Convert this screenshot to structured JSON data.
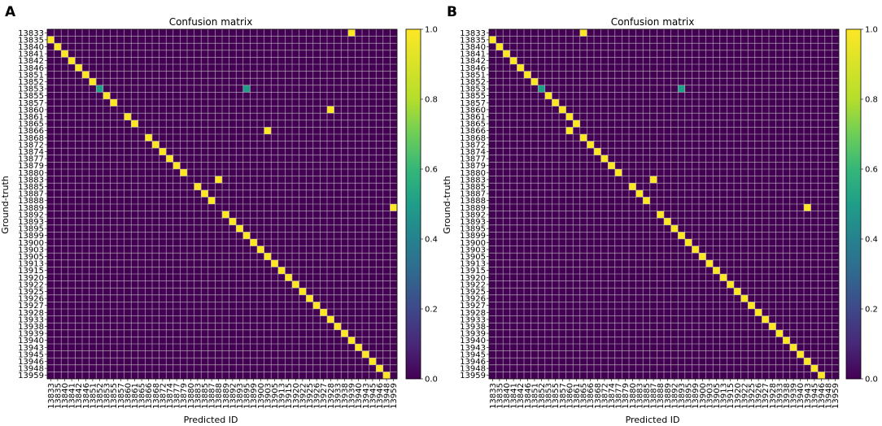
{
  "figure": {
    "panel_labels": [
      "A",
      "B"
    ]
  },
  "chart_data": [
    {
      "type": "heatmap",
      "panel": "A",
      "title": "Confusion matrix",
      "xlabel": "Predicted ID",
      "ylabel": "Ground-truth",
      "colorbar": {
        "min": 0.0,
        "max": 1.0,
        "ticks": [
          "0.0",
          "0.2",
          "0.4",
          "0.6",
          "0.8",
          "1.0"
        ],
        "colormap": "viridis"
      },
      "row_labels": [
        "13833",
        "13835",
        "13840",
        "13841",
        "13842",
        "13846",
        "13851",
        "13852",
        "13853",
        "13855",
        "13857",
        "13860",
        "13861",
        "13865",
        "13866",
        "13868",
        "13872",
        "13874",
        "13877",
        "13879",
        "13880",
        "13883",
        "13885",
        "13887",
        "13888",
        "13889",
        "13892",
        "13893",
        "13895",
        "13899",
        "13900",
        "13903",
        "13905",
        "13913",
        "13915",
        "13920",
        "13922",
        "13925",
        "13926",
        "13927",
        "13928",
        "13933",
        "13938",
        "13939",
        "13940",
        "13943",
        "13945",
        "13946",
        "13948",
        "13959"
      ],
      "col_labels": [
        "13833",
        "13835",
        "13840",
        "13841",
        "13842",
        "13846",
        "13851",
        "13852",
        "13853",
        "13855",
        "13857",
        "13860",
        "13861",
        "13865",
        "13866",
        "13868",
        "13872",
        "13874",
        "13877",
        "13879",
        "13880",
        "13883",
        "13885",
        "13887",
        "13888",
        "13889",
        "13892",
        "13893",
        "13895",
        "13899",
        "13900",
        "13903",
        "13905",
        "13913",
        "13915",
        "13920",
        "13922",
        "13925",
        "13926",
        "13927",
        "13928",
        "13933",
        "13938",
        "13939",
        "13940",
        "13943",
        "13945",
        "13946",
        "13948",
        "13959"
      ],
      "nonzero_cells": [
        {
          "row": 0,
          "col": 43,
          "value": 1.0
        },
        {
          "row": 1,
          "col": 0,
          "value": 1.0
        },
        {
          "row": 2,
          "col": 1,
          "value": 1.0
        },
        {
          "row": 3,
          "col": 2,
          "value": 1.0
        },
        {
          "row": 4,
          "col": 3,
          "value": 1.0
        },
        {
          "row": 5,
          "col": 4,
          "value": 1.0
        },
        {
          "row": 6,
          "col": 5,
          "value": 1.0
        },
        {
          "row": 7,
          "col": 6,
          "value": 1.0
        },
        {
          "row": 8,
          "col": 7,
          "value": 0.5
        },
        {
          "row": 8,
          "col": 28,
          "value": 0.5
        },
        {
          "row": 9,
          "col": 8,
          "value": 1.0
        },
        {
          "row": 10,
          "col": 9,
          "value": 1.0
        },
        {
          "row": 11,
          "col": 40,
          "value": 1.0
        },
        {
          "row": 12,
          "col": 11,
          "value": 1.0
        },
        {
          "row": 13,
          "col": 12,
          "value": 1.0
        },
        {
          "row": 14,
          "col": 31,
          "value": 1.0
        },
        {
          "row": 15,
          "col": 14,
          "value": 1.0
        },
        {
          "row": 16,
          "col": 15,
          "value": 1.0
        },
        {
          "row": 17,
          "col": 16,
          "value": 1.0
        },
        {
          "row": 18,
          "col": 17,
          "value": 1.0
        },
        {
          "row": 19,
          "col": 18,
          "value": 1.0
        },
        {
          "row": 20,
          "col": 19,
          "value": 1.0
        },
        {
          "row": 21,
          "col": 24,
          "value": 1.0
        },
        {
          "row": 22,
          "col": 21,
          "value": 1.0
        },
        {
          "row": 23,
          "col": 22,
          "value": 1.0
        },
        {
          "row": 24,
          "col": 23,
          "value": 1.0
        },
        {
          "row": 25,
          "col": 49,
          "value": 1.0
        },
        {
          "row": 26,
          "col": 25,
          "value": 1.0
        },
        {
          "row": 27,
          "col": 26,
          "value": 1.0
        },
        {
          "row": 28,
          "col": 27,
          "value": 1.0
        },
        {
          "row": 29,
          "col": 28,
          "value": 1.0
        },
        {
          "row": 30,
          "col": 29,
          "value": 1.0
        },
        {
          "row": 31,
          "col": 30,
          "value": 1.0
        },
        {
          "row": 32,
          "col": 31,
          "value": 1.0
        },
        {
          "row": 33,
          "col": 32,
          "value": 1.0
        },
        {
          "row": 34,
          "col": 33,
          "value": 1.0
        },
        {
          "row": 35,
          "col": 34,
          "value": 1.0
        },
        {
          "row": 36,
          "col": 35,
          "value": 1.0
        },
        {
          "row": 37,
          "col": 36,
          "value": 1.0
        },
        {
          "row": 38,
          "col": 37,
          "value": 1.0
        },
        {
          "row": 39,
          "col": 38,
          "value": 1.0
        },
        {
          "row": 40,
          "col": 39,
          "value": 1.0
        },
        {
          "row": 41,
          "col": 40,
          "value": 1.0
        },
        {
          "row": 42,
          "col": 41,
          "value": 1.0
        },
        {
          "row": 43,
          "col": 42,
          "value": 1.0
        },
        {
          "row": 44,
          "col": 43,
          "value": 1.0
        },
        {
          "row": 45,
          "col": 44,
          "value": 1.0
        },
        {
          "row": 46,
          "col": 45,
          "value": 1.0
        },
        {
          "row": 47,
          "col": 46,
          "value": 1.0
        },
        {
          "row": 48,
          "col": 47,
          "value": 1.0
        },
        {
          "row": 49,
          "col": 48,
          "value": 1.0
        }
      ]
    },
    {
      "type": "heatmap",
      "panel": "B",
      "title": "Confusion matrix",
      "xlabel": "Predicted ID",
      "ylabel": "Ground-truth",
      "colorbar": {
        "min": 0.0,
        "max": 1.0,
        "ticks": [
          "0.0",
          "0.2",
          "0.4",
          "0.6",
          "0.8",
          "1.0"
        ],
        "colormap": "viridis"
      },
      "row_labels": [
        "13833",
        "13835",
        "13840",
        "13841",
        "13842",
        "13846",
        "13851",
        "13852",
        "13853",
        "13855",
        "13857",
        "13860",
        "13861",
        "13865",
        "13866",
        "13868",
        "13872",
        "13874",
        "13877",
        "13879",
        "13880",
        "13883",
        "13885",
        "13887",
        "13888",
        "13889",
        "13892",
        "13893",
        "13895",
        "13899",
        "13900",
        "13903",
        "13905",
        "13913",
        "13915",
        "13920",
        "13922",
        "13925",
        "13926",
        "13927",
        "13928",
        "13933",
        "13938",
        "13939",
        "13940",
        "13943",
        "13945",
        "13946",
        "13948",
        "13959"
      ],
      "col_labels": [
        "13833",
        "13835",
        "13840",
        "13841",
        "13842",
        "13846",
        "13851",
        "13852",
        "13853",
        "13855",
        "13857",
        "13860",
        "13861",
        "13865",
        "13866",
        "13868",
        "13872",
        "13874",
        "13877",
        "13879",
        "13880",
        "13883",
        "13885",
        "13887",
        "13888",
        "13889",
        "13892",
        "13893",
        "13895",
        "13899",
        "13900",
        "13903",
        "13905",
        "13913",
        "13915",
        "13920",
        "13922",
        "13925",
        "13926",
        "13927",
        "13928",
        "13933",
        "13938",
        "13939",
        "13940",
        "13943",
        "13945",
        "13946",
        "13948",
        "13959"
      ],
      "nonzero_cells": [
        {
          "row": 0,
          "col": 13,
          "value": 1.0
        },
        {
          "row": 1,
          "col": 0,
          "value": 1.0
        },
        {
          "row": 2,
          "col": 1,
          "value": 1.0
        },
        {
          "row": 3,
          "col": 2,
          "value": 1.0
        },
        {
          "row": 4,
          "col": 3,
          "value": 1.0
        },
        {
          "row": 5,
          "col": 4,
          "value": 1.0
        },
        {
          "row": 6,
          "col": 5,
          "value": 1.0
        },
        {
          "row": 7,
          "col": 6,
          "value": 1.0
        },
        {
          "row": 8,
          "col": 7,
          "value": 0.5
        },
        {
          "row": 8,
          "col": 27,
          "value": 0.5
        },
        {
          "row": 9,
          "col": 8,
          "value": 1.0
        },
        {
          "row": 10,
          "col": 9,
          "value": 1.0
        },
        {
          "row": 11,
          "col": 10,
          "value": 1.0
        },
        {
          "row": 12,
          "col": 11,
          "value": 1.0
        },
        {
          "row": 13,
          "col": 12,
          "value": 1.0
        },
        {
          "row": 14,
          "col": 11,
          "value": 1.0
        },
        {
          "row": 15,
          "col": 13,
          "value": 1.0
        },
        {
          "row": 16,
          "col": 14,
          "value": 1.0
        },
        {
          "row": 17,
          "col": 15,
          "value": 1.0
        },
        {
          "row": 18,
          "col": 16,
          "value": 1.0
        },
        {
          "row": 19,
          "col": 17,
          "value": 1.0
        },
        {
          "row": 20,
          "col": 18,
          "value": 1.0
        },
        {
          "row": 21,
          "col": 23,
          "value": 1.0
        },
        {
          "row": 22,
          "col": 20,
          "value": 1.0
        },
        {
          "row": 23,
          "col": 21,
          "value": 1.0
        },
        {
          "row": 24,
          "col": 22,
          "value": 1.0
        },
        {
          "row": 25,
          "col": 45,
          "value": 1.0
        },
        {
          "row": 26,
          "col": 24,
          "value": 1.0
        },
        {
          "row": 27,
          "col": 25,
          "value": 1.0
        },
        {
          "row": 28,
          "col": 26,
          "value": 1.0
        },
        {
          "row": 29,
          "col": 27,
          "value": 1.0
        },
        {
          "row": 30,
          "col": 28,
          "value": 1.0
        },
        {
          "row": 31,
          "col": 29,
          "value": 1.0
        },
        {
          "row": 32,
          "col": 30,
          "value": 1.0
        },
        {
          "row": 33,
          "col": 31,
          "value": 1.0
        },
        {
          "row": 34,
          "col": 32,
          "value": 1.0
        },
        {
          "row": 35,
          "col": 33,
          "value": 1.0
        },
        {
          "row": 36,
          "col": 34,
          "value": 1.0
        },
        {
          "row": 37,
          "col": 35,
          "value": 1.0
        },
        {
          "row": 38,
          "col": 36,
          "value": 1.0
        },
        {
          "row": 39,
          "col": 37,
          "value": 1.0
        },
        {
          "row": 40,
          "col": 38,
          "value": 1.0
        },
        {
          "row": 41,
          "col": 39,
          "value": 1.0
        },
        {
          "row": 42,
          "col": 40,
          "value": 1.0
        },
        {
          "row": 43,
          "col": 41,
          "value": 1.0
        },
        {
          "row": 44,
          "col": 42,
          "value": 1.0
        },
        {
          "row": 45,
          "col": 43,
          "value": 1.0
        },
        {
          "row": 46,
          "col": 44,
          "value": 1.0
        },
        {
          "row": 47,
          "col": 45,
          "value": 1.0
        },
        {
          "row": 48,
          "col": 46,
          "value": 1.0
        },
        {
          "row": 49,
          "col": 47,
          "value": 1.0
        }
      ]
    }
  ]
}
